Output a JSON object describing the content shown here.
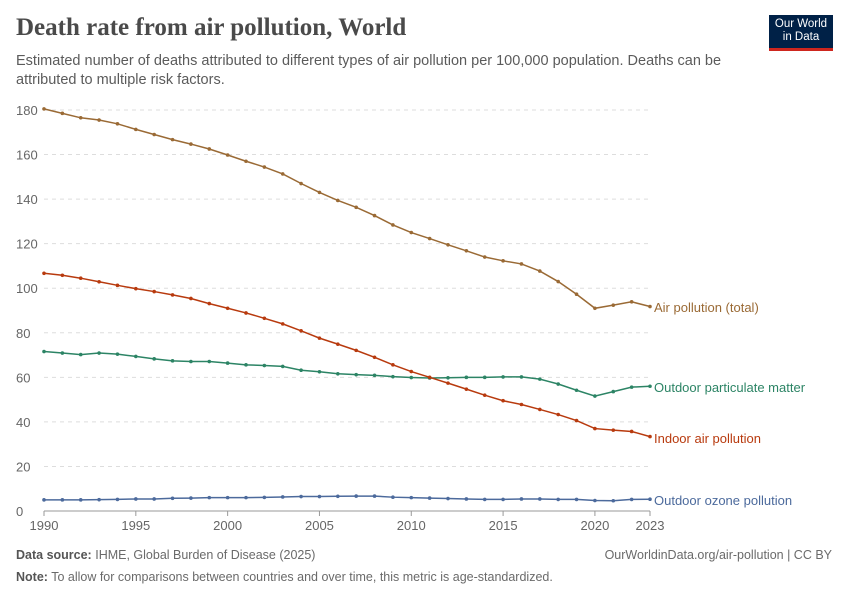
{
  "header": {
    "title": "Death rate from air pollution, World",
    "subtitle": "Estimated number of deaths attributed to different types of air pollution per 100,000 population. Deaths can be attributed to multiple risk factors.",
    "logo_line1": "Our World",
    "logo_line2": "in Data"
  },
  "footer": {
    "source_label": "Data source:",
    "source": "IHME, Global Burden of Disease (2025)",
    "url": "OurWorldinData.org/air-pollution | CC BY",
    "note_label": "Note:",
    "note": "To allow for comparisons between countries and over time, this metric is age-standardized."
  },
  "chart_data": {
    "type": "line",
    "title": "Death rate from air pollution, World",
    "xlim": [
      1990,
      2023
    ],
    "ylim": [
      0,
      180
    ],
    "x_ticks": [
      1990,
      1995,
      2000,
      2005,
      2010,
      2015,
      2020,
      2023
    ],
    "y_ticks": [
      0,
      20,
      40,
      60,
      80,
      100,
      120,
      140,
      160,
      180
    ],
    "grid": "horizontal dashed",
    "legend": "right (inline labels)",
    "x": [
      1990,
      1991,
      1992,
      1993,
      1994,
      1995,
      1996,
      1997,
      1998,
      1999,
      2000,
      2001,
      2002,
      2003,
      2004,
      2005,
      2006,
      2007,
      2008,
      2009,
      2010,
      2011,
      2012,
      2013,
      2014,
      2015,
      2016,
      2017,
      2018,
      2019,
      2020,
      2021,
      2022,
      2023
    ],
    "series": [
      {
        "name": "Air pollution (total)",
        "color": "#9a6a35",
        "values": [
          180.5,
          178.5,
          176.5,
          175.5,
          173.8,
          171.3,
          169,
          166.7,
          164.7,
          162.5,
          159.8,
          157,
          154.4,
          151.3,
          147,
          143,
          139.4,
          136.3,
          132.6,
          128.4,
          125,
          122.3,
          119.5,
          116.8,
          114,
          112.3,
          110.9,
          107.7,
          103,
          97.3,
          91,
          92.4,
          93.9,
          91.8
        ]
      },
      {
        "name": "Outdoor particulate matter",
        "color": "#2c8465",
        "values": [
          71.6,
          70.9,
          70.2,
          70.9,
          70.4,
          69.4,
          68.3,
          67.4,
          67.1,
          67.1,
          66.4,
          65.6,
          65.3,
          64.9,
          63.2,
          62.5,
          61.6,
          61.2,
          60.9,
          60.3,
          59.9,
          59.7,
          59.8,
          60,
          60,
          60.2,
          60.2,
          59.2,
          57,
          54.2,
          51.6,
          53.6,
          55.6,
          56
        ]
      },
      {
        "name": "Indoor air pollution",
        "color": "#b83a0e",
        "values": [
          106.7,
          105.8,
          104.5,
          102.9,
          101.3,
          99.8,
          98.5,
          97,
          95.4,
          93.1,
          91,
          88.9,
          86.5,
          84,
          80.9,
          77.6,
          74.9,
          72.1,
          69,
          65.6,
          62.6,
          60,
          57.4,
          54.7,
          52,
          49.5,
          47.8,
          45.6,
          43.3,
          40.6,
          37,
          36.3,
          35.7,
          33.4
        ]
      },
      {
        "name": "Outdoor ozone pollution",
        "color": "#4c6a9c",
        "values": [
          5,
          5,
          5,
          5.1,
          5.2,
          5.4,
          5.4,
          5.7,
          5.8,
          6,
          6,
          6,
          6.1,
          6.3,
          6.5,
          6.5,
          6.6,
          6.7,
          6.7,
          6.2,
          6,
          5.8,
          5.6,
          5.4,
          5.2,
          5.2,
          5.4,
          5.4,
          5.2,
          5.2,
          4.7,
          4.6,
          5.2,
          5.3
        ]
      }
    ]
  }
}
